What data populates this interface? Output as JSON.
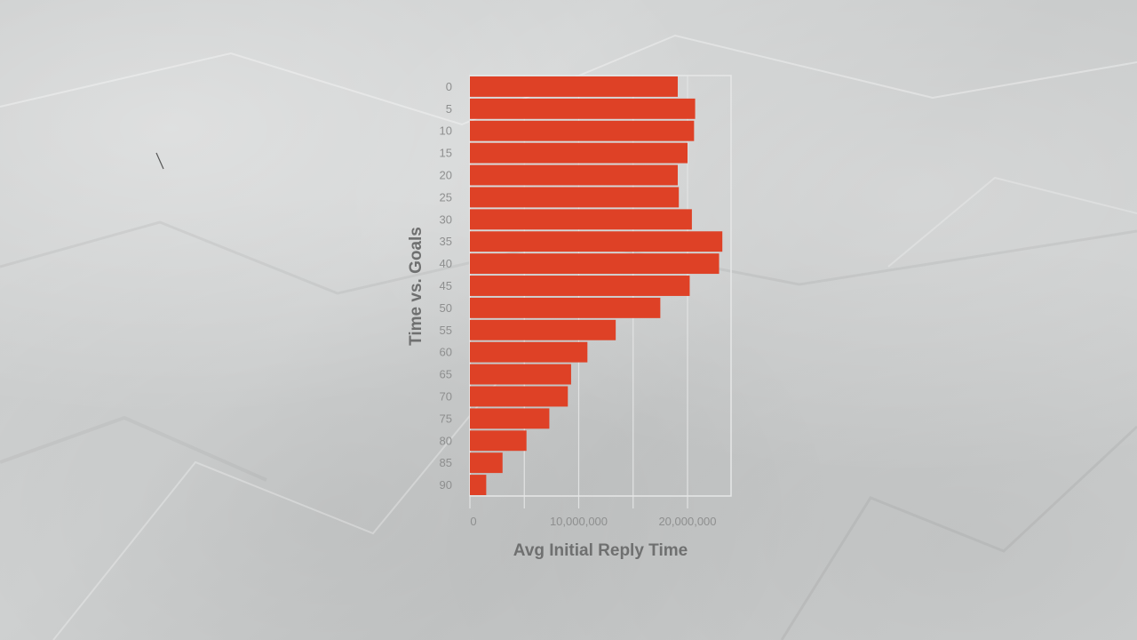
{
  "chart_data": {
    "type": "bar",
    "orientation": "horizontal",
    "categories": [
      "0",
      "5",
      "10",
      "15",
      "20",
      "25",
      "30",
      "35",
      "40",
      "45",
      "50",
      "55",
      "60",
      "65",
      "70",
      "75",
      "80",
      "85",
      "90"
    ],
    "values": [
      19100000,
      20700000,
      20600000,
      20000000,
      19100000,
      19200000,
      20400000,
      23200000,
      22900000,
      20200000,
      17500000,
      13400000,
      10800000,
      9300000,
      9000000,
      7300000,
      5200000,
      3000000,
      1500000
    ],
    "xlabel": "Avg Initial Reply Time",
    "ylabel": "Time vs. Goals",
    "xlim": [
      0,
      24000000
    ],
    "xticks": [
      0,
      10000000,
      20000000
    ],
    "xtick_labels": [
      "0",
      "10,000,000",
      "20,000,000"
    ],
    "vertical_gridlines": [
      0,
      5000000,
      10000000,
      15000000,
      20000000
    ],
    "grid": true,
    "legend": "none",
    "colors": {
      "bar": "#de4126",
      "grid": "#e2e3e3",
      "frame": "#e6e7e7"
    }
  }
}
